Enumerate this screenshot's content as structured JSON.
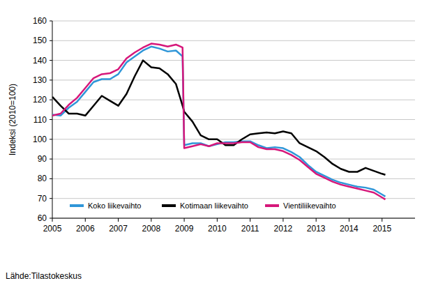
{
  "chart_data": {
    "type": "line",
    "y_label": "Indeksi (2010=100)",
    "annotations": [
      "Lähde:Tilastokeskus"
    ],
    "x": [
      2005.0,
      2005.25,
      2005.5,
      2005.75,
      2006.0,
      2006.25,
      2006.5,
      2006.75,
      2007.0,
      2007.25,
      2007.5,
      2007.75,
      2008.0,
      2008.25,
      2008.5,
      2008.75,
      2008.95,
      2009.0,
      2009.25,
      2009.5,
      2009.75,
      2010.0,
      2010.25,
      2010.5,
      2010.75,
      2011.0,
      2011.25,
      2011.5,
      2011.75,
      2012.0,
      2012.25,
      2012.5,
      2012.75,
      2013.0,
      2013.25,
      2013.5,
      2013.75,
      2014.0,
      2014.25,
      2014.5,
      2014.75,
      2015.0,
      2015.1
    ],
    "series": [
      {
        "name": "Koko liikevaihto",
        "color": "#2f96d8",
        "values": [
          112.5,
          112,
          116,
          119,
          124,
          129,
          130.5,
          130.5,
          133,
          139,
          142,
          145,
          147,
          146,
          144.5,
          145,
          142,
          97,
          98,
          98,
          96.5,
          97.5,
          98.5,
          98.5,
          99,
          99,
          97,
          95.5,
          96,
          95.5,
          93.5,
          91,
          87,
          83.5,
          81.5,
          79.5,
          78,
          77,
          76,
          75.5,
          74.5,
          72,
          71
        ]
      },
      {
        "name": "Kotimaan liikevaihto",
        "color": "#000000",
        "values": [
          121.5,
          117,
          113,
          113,
          112,
          117,
          122,
          119.5,
          117,
          123,
          132,
          140,
          136.5,
          136,
          133,
          128,
          117,
          114,
          109,
          102,
          100,
          100,
          97,
          97,
          100,
          102.5,
          103,
          103.5,
          103,
          104,
          103,
          98,
          96,
          94,
          91,
          87.5,
          85,
          83.5,
          83.5,
          85.5,
          84,
          82.5,
          82
        ]
      },
      {
        "name": "Vientiliikevaihto",
        "color": "#d6177a",
        "values": [
          112,
          113,
          117.5,
          121,
          126,
          131,
          133,
          133.5,
          135.5,
          141,
          144,
          146.5,
          148.5,
          148,
          147,
          148,
          146.5,
          95.5,
          96.5,
          97.5,
          96.5,
          98,
          98,
          98,
          98.5,
          98.5,
          96,
          95,
          95,
          94,
          92,
          89.5,
          86,
          82.5,
          80.5,
          78.5,
          77,
          76,
          75,
          74,
          73,
          70.5,
          69.5
        ]
      }
    ],
    "xlim": [
      2005,
      2016
    ],
    "xticks": [
      2005,
      2006,
      2007,
      2008,
      2009,
      2010,
      2011,
      2012,
      2013,
      2014,
      2015
    ],
    "ylim": [
      60,
      160
    ],
    "yticks": [
      60,
      70,
      80,
      90,
      100,
      110,
      120,
      130,
      140,
      150,
      160
    ],
    "grid": true,
    "legend": "lower left"
  }
}
